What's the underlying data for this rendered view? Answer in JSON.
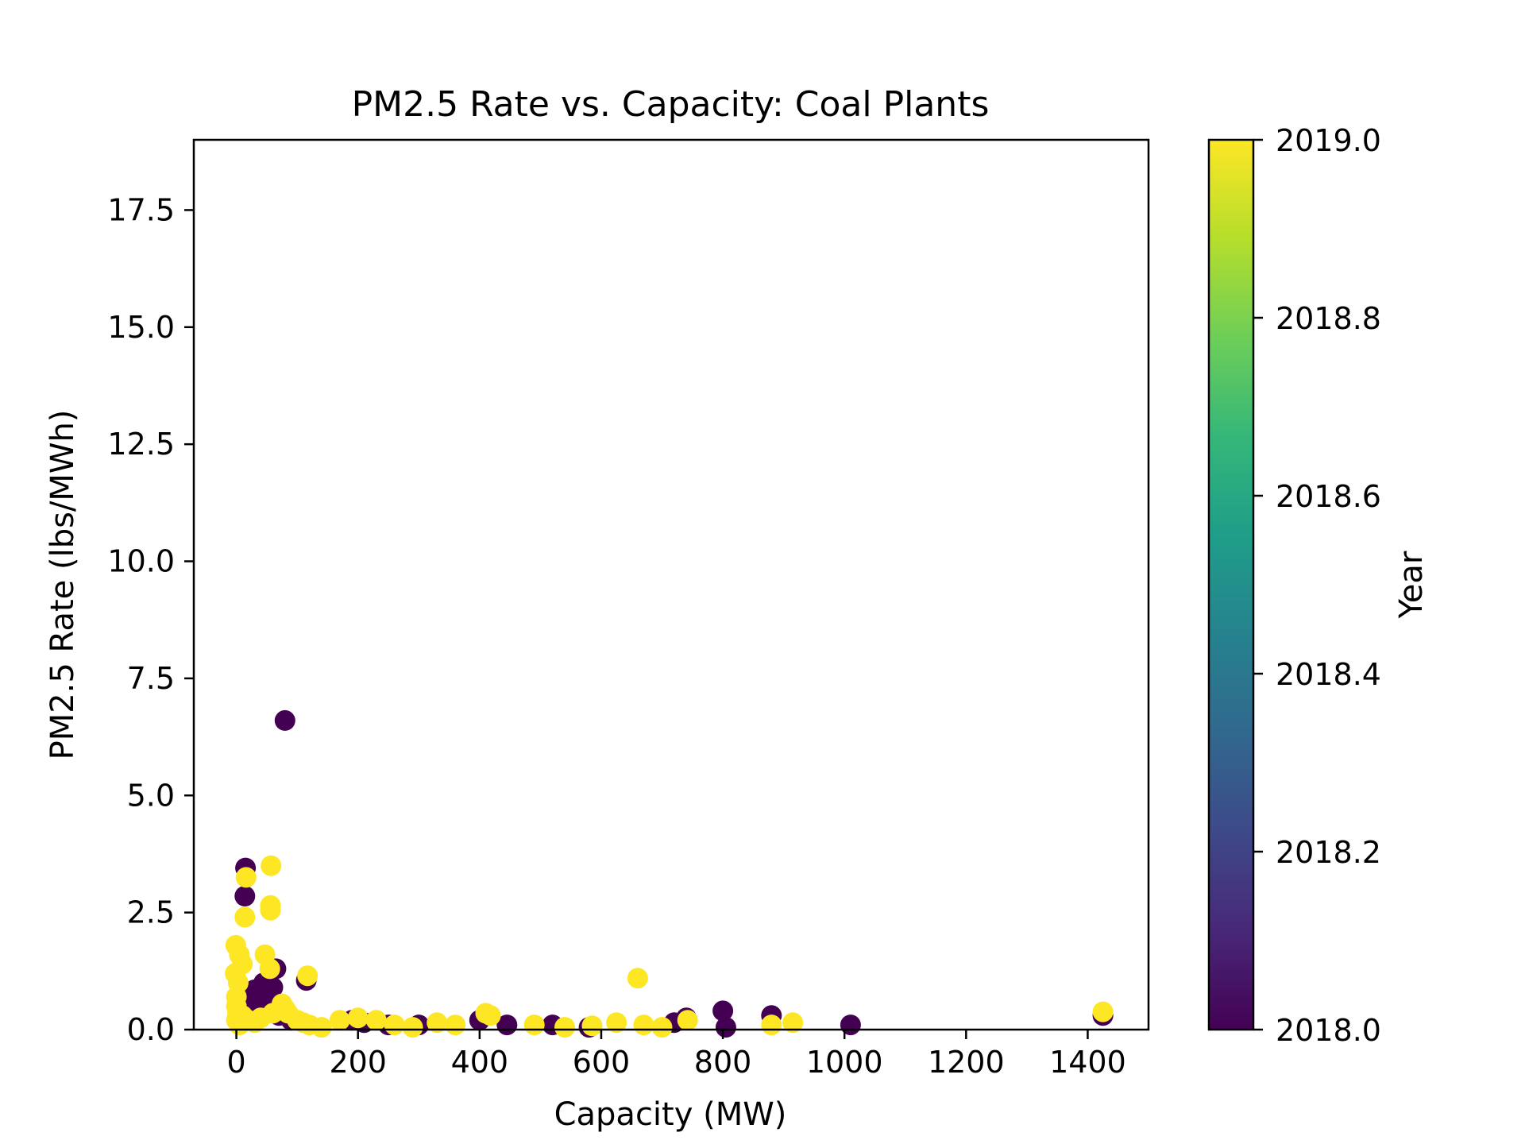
{
  "chart_data": {
    "type": "scatter",
    "title": "PM2.5 Rate vs. Capacity: Coal Plants",
    "xlabel": "Capacity (MW)",
    "ylabel": "PM2.5 Rate (lbs/MWh)",
    "xlim": [
      -70,
      1500
    ],
    "ylim": [
      0,
      19
    ],
    "xticks": [
      0,
      200,
      400,
      600,
      800,
      1000,
      1200,
      1400
    ],
    "xtick_labels": [
      "0",
      "200",
      "400",
      "600",
      "800",
      "1000",
      "1200",
      "1400"
    ],
    "yticks": [
      0,
      2.5,
      5,
      7.5,
      10,
      12.5,
      15,
      17.5
    ],
    "ytick_labels": [
      "0.0",
      "2.5",
      "5.0",
      "7.5",
      "10.0",
      "12.5",
      "15.0",
      "17.5"
    ],
    "grid": false,
    "colorbar": {
      "label": "Year",
      "range": [
        2018.0,
        2019.0
      ],
      "ticks": [
        2018.0,
        2018.2,
        2018.4,
        2018.6,
        2018.8,
        2019.0
      ],
      "tick_labels": [
        "2018.0",
        "2018.2",
        "2018.4",
        "2018.6",
        "2018.8",
        "2019.0"
      ],
      "colormap": "viridis",
      "colors": [
        "#440154",
        "#482878",
        "#3e4989",
        "#31688e",
        "#26828e",
        "#1f9e89",
        "#35b779",
        "#6ece58",
        "#b5de2b",
        "#fde725"
      ]
    },
    "series": [
      {
        "year": 2018,
        "color": "#440154",
        "points": [
          [
            80,
            6.6
          ],
          [
            15,
            3.45
          ],
          [
            14,
            2.85
          ],
          [
            115,
            1.05
          ],
          [
            45,
            1.0
          ],
          [
            55,
            0.95
          ],
          [
            30,
            0.85
          ],
          [
            60,
            0.9
          ],
          [
            40,
            0.75
          ],
          [
            65,
            1.3
          ],
          [
            50,
            0.6
          ],
          [
            20,
            0.5
          ],
          [
            35,
            0.4
          ],
          [
            70,
            0.3
          ],
          [
            90,
            0.2
          ],
          [
            25,
            0.25
          ],
          [
            190,
            0.2
          ],
          [
            210,
            0.15
          ],
          [
            250,
            0.1
          ],
          [
            300,
            0.1
          ],
          [
            400,
            0.2
          ],
          [
            445,
            0.1
          ],
          [
            520,
            0.1
          ],
          [
            580,
            0.05
          ],
          [
            720,
            0.15
          ],
          [
            740,
            0.25
          ],
          [
            800,
            0.4
          ],
          [
            805,
            0.05
          ],
          [
            880,
            0.3
          ],
          [
            1010,
            0.1
          ],
          [
            1425,
            0.3
          ]
        ]
      },
      {
        "year": 2019,
        "color": "#fde725",
        "points": [
          [
            57,
            3.5
          ],
          [
            16,
            3.25
          ],
          [
            56,
            2.65
          ],
          [
            56,
            2.55
          ],
          [
            14,
            2.4
          ],
          [
            -1,
            1.8
          ],
          [
            5,
            1.6
          ],
          [
            10,
            1.4
          ],
          [
            -2,
            1.2
          ],
          [
            3,
            1.0
          ],
          [
            47,
            1.6
          ],
          [
            55,
            1.3
          ],
          [
            117,
            1.15
          ],
          [
            660,
            1.1
          ],
          [
            0,
            0.7
          ],
          [
            0,
            0.5
          ],
          [
            2,
            0.35
          ],
          [
            0,
            0.2
          ],
          [
            5,
            0.1
          ],
          [
            10,
            0.3
          ],
          [
            20,
            0.2
          ],
          [
            30,
            0.15
          ],
          [
            40,
            0.25
          ],
          [
            60,
            0.35
          ],
          [
            75,
            0.55
          ],
          [
            80,
            0.45
          ],
          [
            85,
            0.35
          ],
          [
            100,
            0.2
          ],
          [
            110,
            0.15
          ],
          [
            120,
            0.1
          ],
          [
            140,
            0.05
          ],
          [
            170,
            0.2
          ],
          [
            200,
            0.25
          ],
          [
            230,
            0.2
          ],
          [
            260,
            0.1
          ],
          [
            290,
            0.05
          ],
          [
            330,
            0.15
          ],
          [
            360,
            0.1
          ],
          [
            410,
            0.35
          ],
          [
            418,
            0.3
          ],
          [
            490,
            0.1
          ],
          [
            540,
            0.05
          ],
          [
            585,
            0.08
          ],
          [
            625,
            0.15
          ],
          [
            670,
            0.1
          ],
          [
            700,
            0.05
          ],
          [
            742,
            0.2
          ],
          [
            880,
            0.1
          ],
          [
            915,
            0.15
          ],
          [
            1425,
            0.38
          ]
        ]
      }
    ]
  }
}
